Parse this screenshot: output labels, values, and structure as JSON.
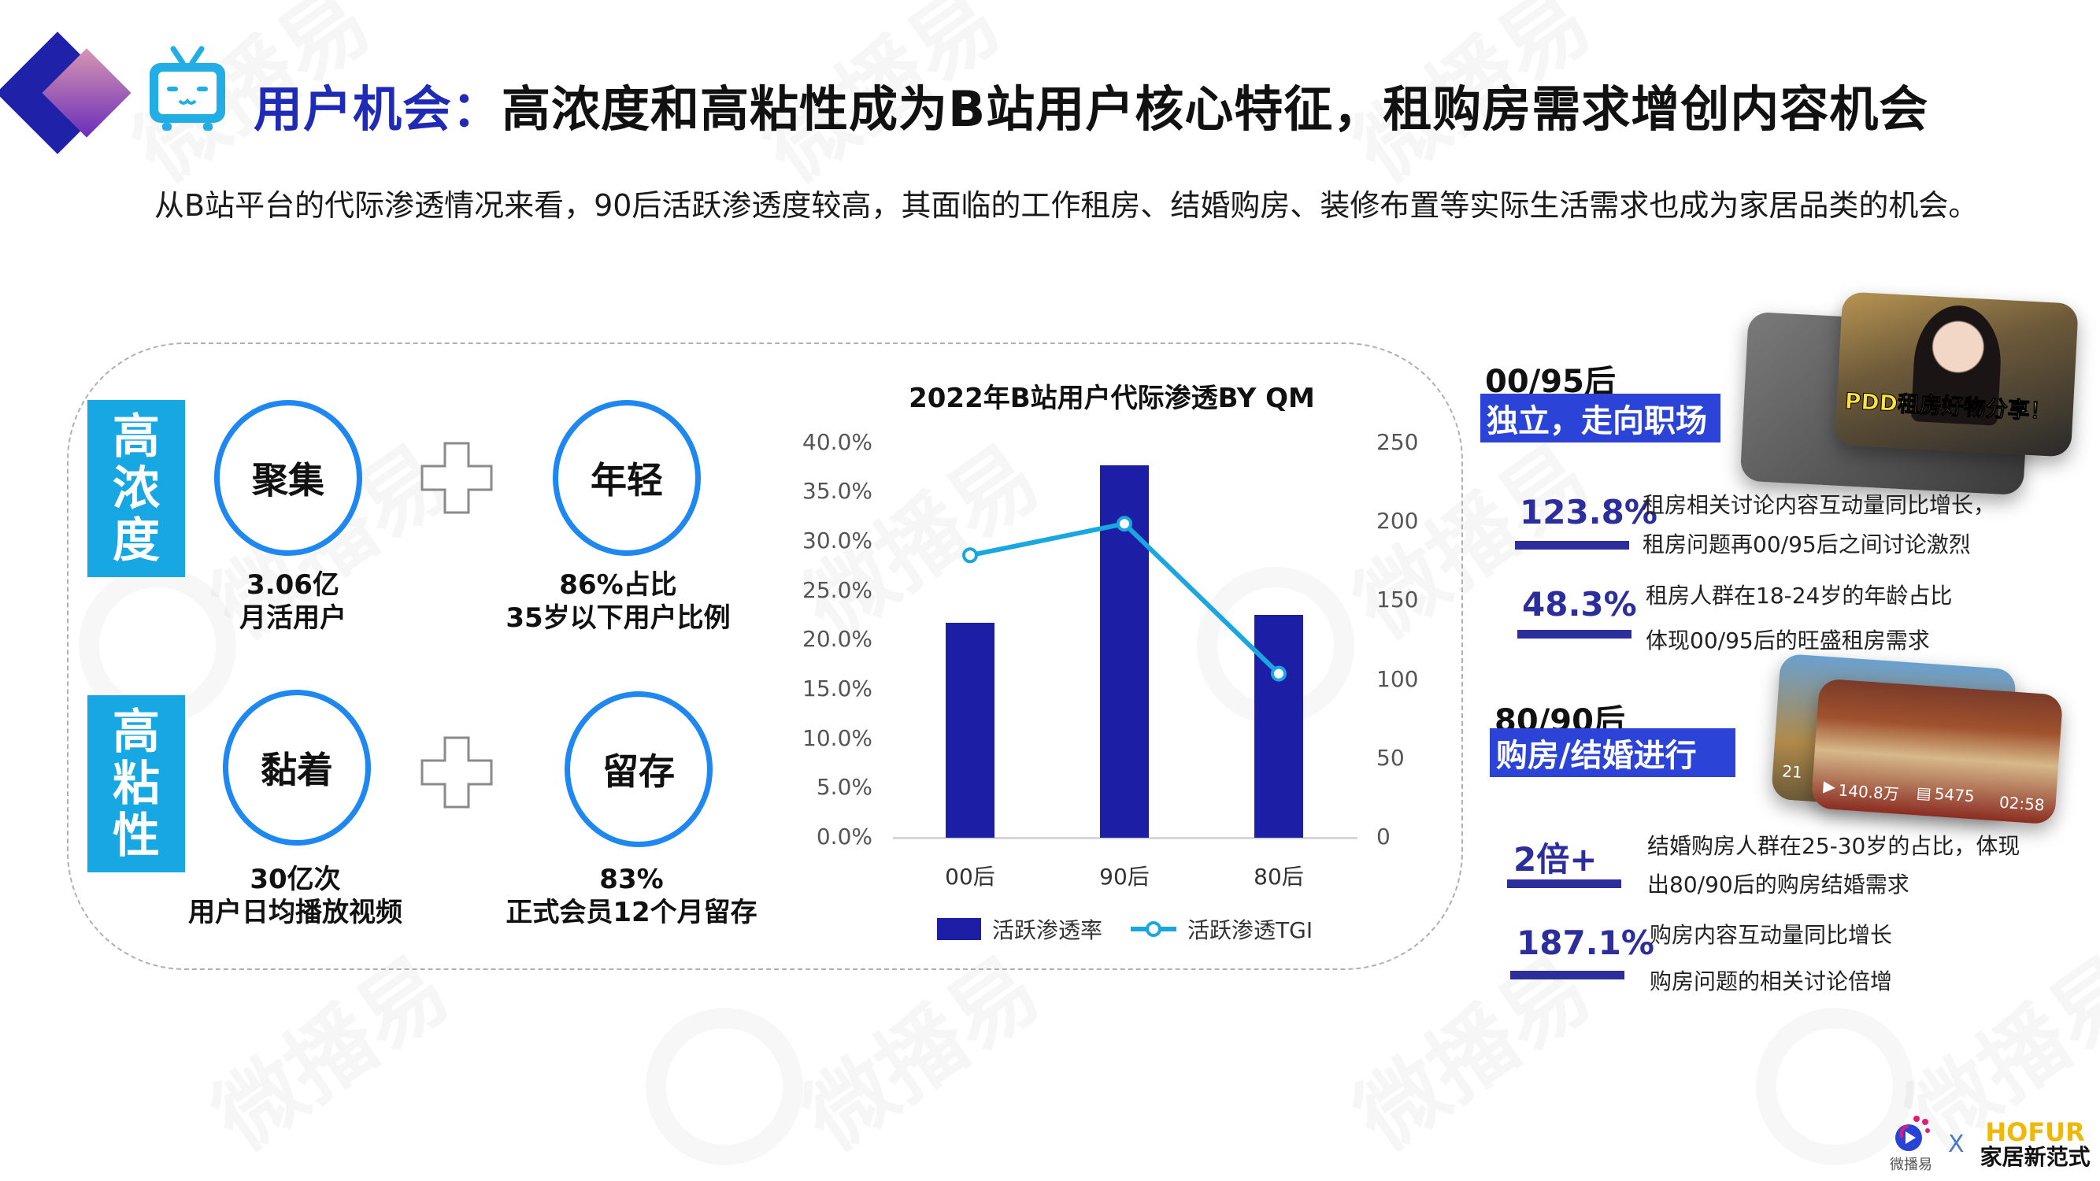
{
  "header": {
    "title_accent": "用户机会：",
    "title_main": "高浓度和高粘性成为B站用户核心特征，租购房需求增创内容机会",
    "subtitle": "从B站平台的代际渗透情况来看，90后活跃渗透度较高，其面临的工作租房、结婚购房、装修布置等实际生活需求也成为家居品类的机会。",
    "icons": [
      "diamond-logo-icon",
      "bilibili-tv-icon"
    ]
  },
  "features": {
    "high_concentration": {
      "label": [
        "高",
        "浓",
        "度"
      ],
      "items": [
        {
          "keyword": "聚集",
          "value": "3.06亿",
          "caption": "月活用户"
        },
        {
          "keyword": "年轻",
          "value": "86%占比",
          "caption": "35岁以下用户比例"
        }
      ]
    },
    "high_stickiness": {
      "label": [
        "高",
        "粘",
        "性"
      ],
      "items": [
        {
          "keyword": "黏着",
          "value": "30亿次",
          "caption": "用户日均播放视频"
        },
        {
          "keyword": "留存",
          "value": "83%",
          "caption": "正式会员12个月留存"
        }
      ]
    }
  },
  "chart_data": {
    "type": "bar",
    "title": "2022年B站用户代际渗透BY QM",
    "categories": [
      "00后",
      "90后",
      "80后"
    ],
    "series": [
      {
        "name": "活跃渗透率",
        "type": "bar",
        "axis": "left",
        "values": [
          21.8,
          37.8,
          22.6
        ],
        "color": "#1c1fa6"
      },
      {
        "name": "活跃渗透TGI",
        "type": "line",
        "axis": "right",
        "values": [
          179,
          199,
          104
        ],
        "color": "#1aa7e0"
      }
    ],
    "y_left": {
      "ticks": [
        "0.0%",
        "5.0%",
        "10.0%",
        "15.0%",
        "20.0%",
        "25.0%",
        "30.0%",
        "35.0%",
        "40.0%"
      ],
      "range": [
        0,
        40
      ]
    },
    "y_right": {
      "ticks": [
        "0",
        "50",
        "100",
        "150",
        "200",
        "250"
      ],
      "range": [
        0,
        250
      ]
    },
    "xlabel": "",
    "ylabel": "",
    "grid": false,
    "legend_position": "bottom"
  },
  "segments": [
    {
      "generation": "00/95后",
      "tag": "独立，走向职场",
      "thumb_text": "PDD租房好物分享！",
      "stats": [
        {
          "value": "123.8%",
          "lines": [
            "租房相关讨论内容互动量同比增长，",
            "租房问题再00/95后之间讨论激烈"
          ]
        },
        {
          "value": "48.3%",
          "lines": [
            "租房人群在18-24岁的年龄占比",
            "体现00/95后的旺盛租房需求"
          ]
        }
      ]
    },
    {
      "generation": "80/90后",
      "tag": "购房/结婚进行",
      "thumb_views": "140.8万",
      "thumb_comments": "5475",
      "thumb_duration": "02:58",
      "thumb_back_views": "21",
      "stats": [
        {
          "value": "2倍+",
          "lines": [
            "结婚购房人群在25-30岁的占比，体现",
            "出80/90后的购房结婚需求"
          ]
        },
        {
          "value": "187.1%",
          "lines": [
            "购房内容互动量同比增长",
            "购房问题的相关讨论倍增"
          ]
        }
      ]
    }
  ],
  "footer": {
    "brand1": "微播易",
    "separator": "X",
    "brand2_en": "HOFUR",
    "brand2_cn": "家居新范式"
  },
  "watermark": "微播易",
  "colors": {
    "accent_blue": "#1f2bb5",
    "label_cyan": "#17a7e3",
    "circle_blue": "#1e88f0",
    "bar_navy": "#1c1fa6",
    "line_cyan": "#1aa7e0",
    "tag_blue": "#2c43d8",
    "stat_navy": "#2c2f9b",
    "hofur_gold": "#f2b705"
  }
}
